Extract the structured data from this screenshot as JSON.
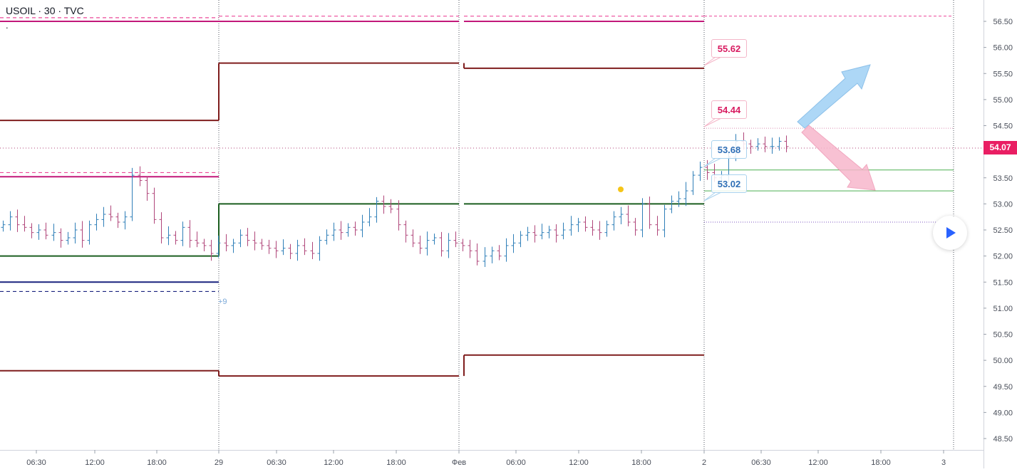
{
  "header": {
    "symbol": "USOIL · 30 · TVC",
    "subtitle": "."
  },
  "chart_data": {
    "type": "candlestick",
    "title": "USOIL · 30 · TVC",
    "xlabel": "",
    "ylabel": "",
    "ylim": [
      48.25,
      56.85
    ],
    "y_ticks": [
      "56.50",
      "56.00",
      "55.50",
      "55.00",
      "54.50",
      "54.00",
      "53.50",
      "53.00",
      "52.50",
      "52.00",
      "51.50",
      "51.00",
      "50.50",
      "50.00",
      "49.50",
      "49.00",
      "48.50"
    ],
    "x_tick_labels": [
      "06:30",
      "12:00",
      "18:00",
      "29",
      "06:30",
      "12:00",
      "18:00",
      "Фев",
      "06:00",
      "12:00",
      "18:00",
      "2",
      "06:30",
      "12:00",
      "18:00",
      "3"
    ],
    "current_price": "54.07",
    "price_path": [
      52.6,
      52.75,
      52.6,
      52.55,
      52.45,
      52.5,
      52.4,
      52.45,
      52.3,
      52.35,
      52.5,
      52.3,
      52.6,
      52.7,
      52.8,
      52.75,
      52.65,
      52.75,
      53.55,
      53.45,
      53.2,
      52.7,
      52.35,
      52.4,
      52.3,
      52.55,
      52.3,
      52.25,
      52.2,
      52.05,
      52.25,
      52.2,
      52.25,
      52.4,
      52.3,
      52.25,
      52.2,
      52.15,
      52.1,
      52.15,
      52.05,
      52.2,
      52.1,
      52.05,
      52.3,
      52.4,
      52.5,
      52.45,
      52.55,
      52.5,
      52.65,
      52.75,
      53.05,
      52.95,
      52.9,
      52.6,
      52.4,
      52.25,
      52.15,
      52.3,
      52.35,
      52.1,
      52.3,
      52.25,
      52.2,
      52.1,
      51.9,
      52.0,
      52.1,
      52.0,
      52.2,
      52.25,
      52.4,
      52.45,
      52.4,
      52.45,
      52.5,
      52.4,
      52.5,
      52.6,
      52.65,
      52.55,
      52.5,
      52.45,
      52.6,
      52.75,
      52.8,
      52.65,
      52.5,
      53.0,
      52.6,
      52.5,
      52.9,
      53.05,
      53.1,
      53.25,
      53.55,
      53.7,
      53.6,
      53.5,
      53.55,
      53.9,
      54.2,
      54.15,
      54.1,
      54.15,
      54.1,
      54.1,
      54.2,
      54.1
    ],
    "levels": [
      {
        "price": 56.57,
        "day": 0,
        "style": "dashed",
        "color": "#ec4899"
      },
      {
        "price": 56.5,
        "day": 0,
        "style": "solid",
        "color": "#c2187a"
      },
      {
        "price": 54.6,
        "day": 0,
        "style": "solid",
        "color": "#7f1d1d"
      },
      {
        "price": 53.6,
        "day": 0,
        "style": "dashed",
        "color": "#ec4899"
      },
      {
        "price": 53.52,
        "day": 0,
        "style": "solid",
        "color": "#c2187a"
      },
      {
        "price": 52.0,
        "day": 0,
        "style": "solid",
        "color": "#1b5e20"
      },
      {
        "price": 51.5,
        "day": 0,
        "style": "solid",
        "color": "#1a237e"
      },
      {
        "price": 51.32,
        "day": 0,
        "style": "dashed",
        "color": "#1a237e"
      },
      {
        "price": 49.8,
        "day": 0,
        "style": "solid",
        "color": "#7f1d1d"
      },
      {
        "price": 56.6,
        "day": 1,
        "style": "dashed",
        "color": "#ec4899"
      },
      {
        "price": 56.5,
        "day": 1,
        "style": "solid",
        "color": "#c2187a"
      },
      {
        "price": 55.7,
        "day": 1,
        "style": "solid",
        "color": "#7f1d1d"
      },
      {
        "price": 53.0,
        "day": 1,
        "style": "solid",
        "color": "#1b5e20"
      },
      {
        "price": 49.7,
        "day": 1,
        "style": "solid",
        "color": "#7f1d1d"
      },
      {
        "price": 56.6,
        "day": 2,
        "style": "dashed",
        "color": "#ec4899"
      },
      {
        "price": 56.5,
        "day": 2,
        "style": "solid",
        "color": "#c2187a"
      },
      {
        "price": 55.6,
        "day": 2,
        "style": "solid",
        "color": "#7f1d1d"
      },
      {
        "price": 53.0,
        "day": 2,
        "style": "solid",
        "color": "#1b5e20"
      },
      {
        "price": 50.1,
        "day": 2,
        "style": "solid",
        "color": "#7f1d1d"
      }
    ],
    "right_levels": [
      {
        "price": 56.6,
        "style": "dashed",
        "color": "#ec4899"
      },
      {
        "price": 54.45,
        "style": "dotted",
        "color": "#d98ab0"
      },
      {
        "price": 53.65,
        "style": "solid",
        "color": "#4caf50"
      },
      {
        "price": 53.25,
        "style": "solid",
        "color": "#4caf50"
      },
      {
        "price": 52.65,
        "style": "dotted",
        "color": "#7e57c2"
      }
    ],
    "annotations": [
      {
        "label": "55.62",
        "kind": "target",
        "color": "pink"
      },
      {
        "label": "54.44",
        "kind": "target",
        "color": "pink"
      },
      {
        "label": "53.68",
        "kind": "support",
        "color": "blue"
      },
      {
        "label": "53.02",
        "kind": "support",
        "color": "blue"
      }
    ],
    "marker_label": "+9",
    "colors": {
      "up": "#2f7fb8",
      "down": "#b0467a",
      "grid": "#c9ccd6",
      "accent": "#e91e63"
    }
  }
}
